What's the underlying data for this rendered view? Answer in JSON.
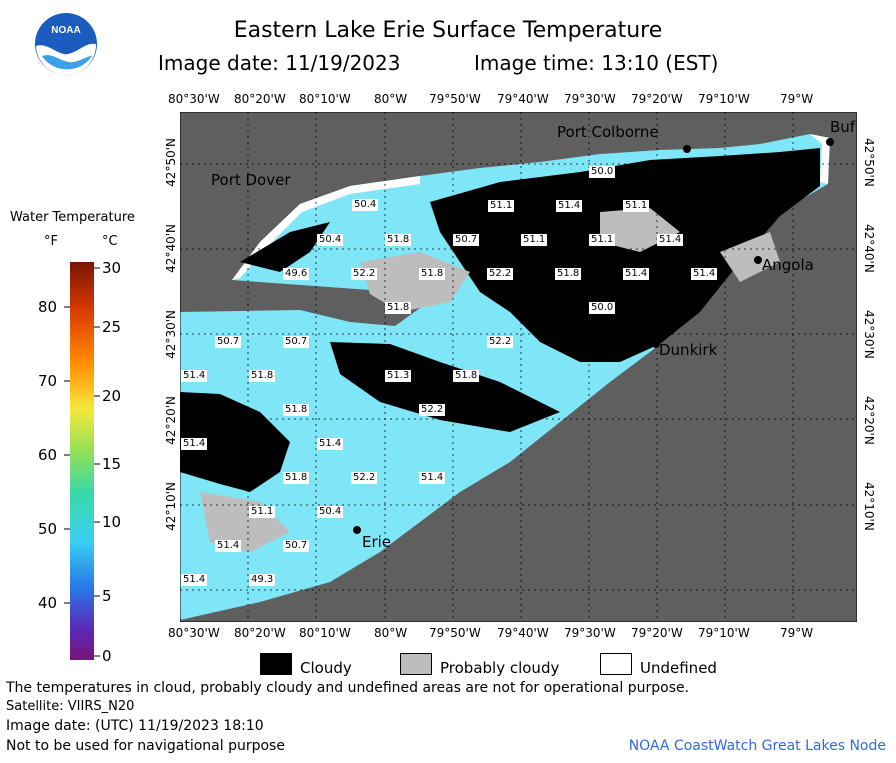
{
  "header": {
    "title": "Eastern Lake Erie Surface Temperature",
    "image_date_label": "Image date: 11/19/2023",
    "image_time_label": "Image time: 13:10 (EST)"
  },
  "logo": {
    "text": "NOAA"
  },
  "legend": {
    "title": "Water Temperature",
    "unit_f": "°F",
    "unit_c": "°C",
    "f_ticks": [
      "80",
      "70",
      "60",
      "50",
      "40"
    ],
    "c_ticks": [
      "30",
      "25",
      "20",
      "15",
      "10",
      "5",
      "0"
    ]
  },
  "map": {
    "lon_labels": [
      "80°30'W",
      "80°20'W",
      "80°10'W",
      "80°W",
      "79°50'W",
      "79°40'W",
      "79°30'W",
      "79°20'W",
      "79°10'W",
      "79°W"
    ],
    "lat_labels": [
      "42°50'N",
      "42°40'N",
      "42°30'N",
      "42°20'N",
      "42°10'N"
    ],
    "places": {
      "port_colborne": "Port Colborne",
      "port_dover": "Port Dover",
      "angola": "Angola",
      "dunkirk": "Dunkirk",
      "erie": "Erie",
      "buffalo": "Buf"
    },
    "temperatures": [
      "50.0",
      "50.4",
      "51.1",
      "51.4",
      "51.1",
      "50.4",
      "51.8",
      "50.7",
      "51.1",
      "51.1",
      "51.4",
      "49.6",
      "52.2",
      "51.8",
      "52.2",
      "51.8",
      "51.4",
      "51.4",
      "51.8",
      "50.0",
      "50.7",
      "50.7",
      "52.2",
      "51.4",
      "51.8",
      "51.3",
      "51.8",
      "51.8",
      "52.2",
      "51.4",
      "51.4",
      "51.8",
      "52.2",
      "51.4",
      "51.1",
      "50.4",
      "51.4",
      "50.7",
      "51.4",
      "49.3"
    ]
  },
  "key": {
    "cloudy": "Cloudy",
    "probably_cloudy": "Probably cloudy",
    "undefined": "Undefined"
  },
  "footer": {
    "disclaimer": "The temperatures in cloud, probably cloudy and undefined areas are not for operational purpose.",
    "satellite": "Satellite: VIIRS_N20",
    "utc_date": "Image date: (UTC) 11/19/2023  18:10",
    "nav_warning": "Not to be used for navigational purpose",
    "credit": "NOAA CoastWatch Great Lakes Node"
  },
  "colors": {
    "land": "#5f5f5f",
    "water": "#7fe6f7",
    "cloud": "#000000",
    "probably_cloudy": "#bdbdbd",
    "undefined": "#ffffff",
    "credit": "#2f6bd8"
  }
}
